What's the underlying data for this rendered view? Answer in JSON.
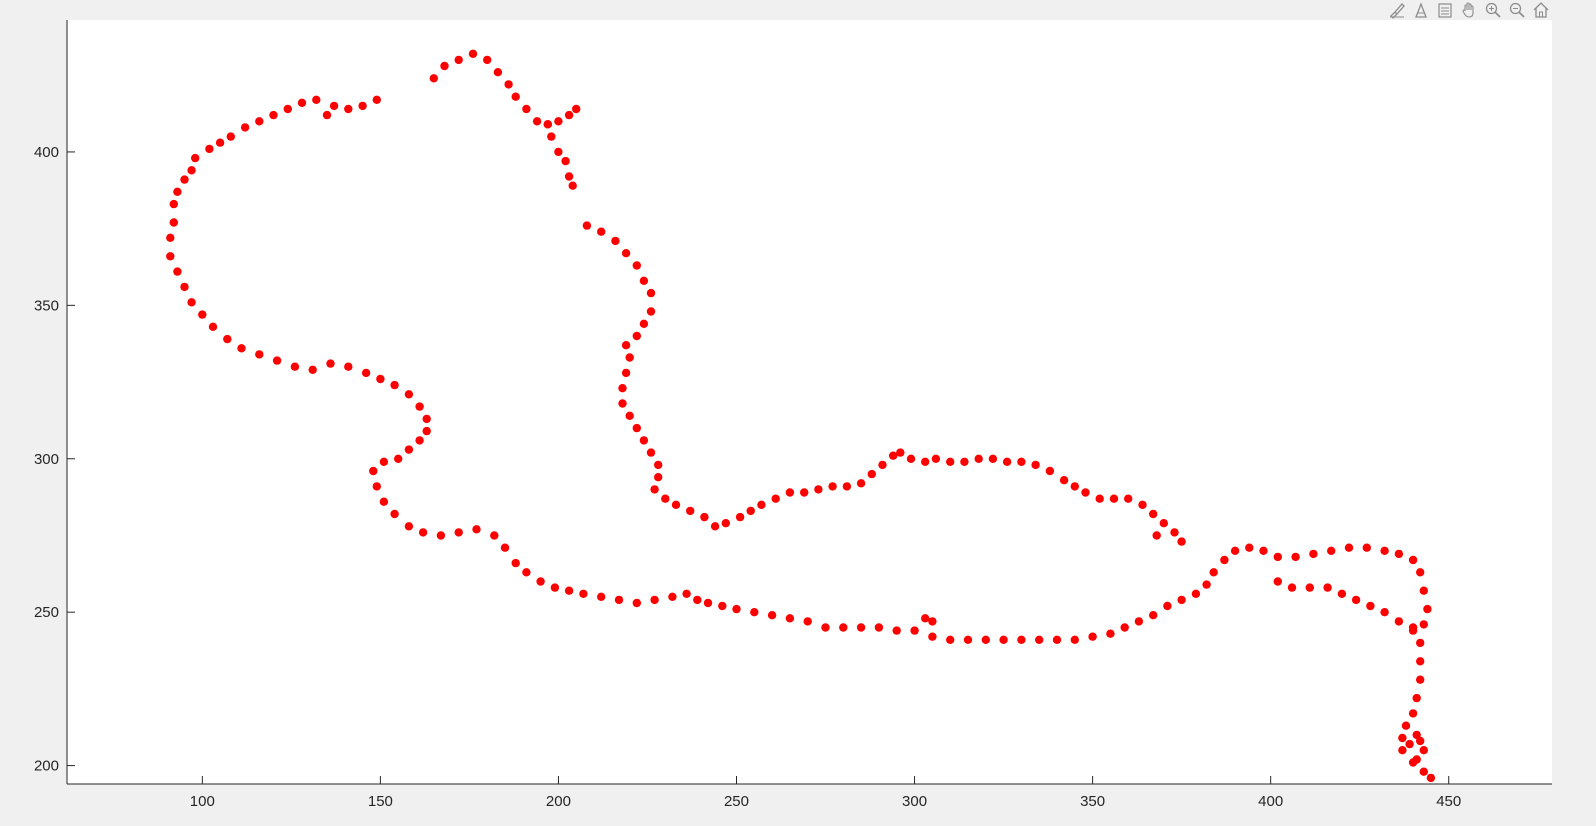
{
  "toolbar": {
    "icons": [
      "brush-icon",
      "data-tips-icon",
      "legend-icon",
      "pan-icon",
      "zoom-in-icon",
      "zoom-out-icon",
      "home-icon"
    ]
  },
  "colors": {
    "background": "#f0f0f0",
    "axes_background": "#ffffff",
    "marker": "#ff0000",
    "axis": "#262626",
    "icon": "#8c8c8c"
  },
  "chart_data": {
    "type": "scatter",
    "title": "",
    "xlabel": "",
    "ylabel": "",
    "xlim": [
      62,
      479
    ],
    "ylim": [
      194,
      443
    ],
    "xticks": [
      100,
      150,
      200,
      250,
      300,
      350,
      400,
      450
    ],
    "yticks": [
      200,
      250,
      300,
      350,
      400
    ],
    "grid": false,
    "marker": "filled circle",
    "series": [
      {
        "color": "#ff0000",
        "points": [
          [
            165,
            424
          ],
          [
            168,
            428
          ],
          [
            172,
            430
          ],
          [
            176,
            432
          ],
          [
            180,
            430
          ],
          [
            183,
            426
          ],
          [
            186,
            422
          ],
          [
            188,
            418
          ],
          [
            191,
            414
          ],
          [
            194,
            410
          ],
          [
            197,
            409
          ],
          [
            200,
            410
          ],
          [
            203,
            412
          ],
          [
            205,
            414
          ],
          [
            197,
            409
          ],
          [
            198,
            405
          ],
          [
            200,
            400
          ],
          [
            202,
            397
          ],
          [
            203,
            392
          ],
          [
            204,
            389
          ],
          [
            149,
            417
          ],
          [
            145,
            415
          ],
          [
            141,
            414
          ],
          [
            137,
            415
          ],
          [
            135,
            412
          ],
          [
            132,
            417
          ],
          [
            128,
            416
          ],
          [
            124,
            414
          ],
          [
            120,
            412
          ],
          [
            116,
            410
          ],
          [
            112,
            408
          ],
          [
            108,
            405
          ],
          [
            105,
            403
          ],
          [
            102,
            401
          ],
          [
            98,
            398
          ],
          [
            97,
            394
          ],
          [
            95,
            391
          ],
          [
            93,
            387
          ],
          [
            92,
            383
          ],
          [
            92,
            377
          ],
          [
            91,
            372
          ],
          [
            91,
            366
          ],
          [
            93,
            361
          ],
          [
            95,
            356
          ],
          [
            97,
            351
          ],
          [
            100,
            347
          ],
          [
            103,
            343
          ],
          [
            107,
            339
          ],
          [
            111,
            336
          ],
          [
            116,
            334
          ],
          [
            121,
            332
          ],
          [
            126,
            330
          ],
          [
            131,
            329
          ],
          [
            136,
            331
          ],
          [
            141,
            330
          ],
          [
            146,
            328
          ],
          [
            150,
            326
          ],
          [
            154,
            324
          ],
          [
            158,
            321
          ],
          [
            161,
            317
          ],
          [
            163,
            313
          ],
          [
            163,
            309
          ],
          [
            161,
            306
          ],
          [
            158,
            303
          ],
          [
            155,
            300
          ],
          [
            151,
            299
          ],
          [
            148,
            296
          ],
          [
            149,
            291
          ],
          [
            151,
            286
          ],
          [
            154,
            282
          ],
          [
            158,
            278
          ],
          [
            162,
            276
          ],
          [
            167,
            275
          ],
          [
            172,
            276
          ],
          [
            177,
            277
          ],
          [
            182,
            275
          ],
          [
            185,
            271
          ],
          [
            188,
            266
          ],
          [
            191,
            263
          ],
          [
            195,
            260
          ],
          [
            199,
            258
          ],
          [
            203,
            257
          ],
          [
            207,
            256
          ],
          [
            212,
            255
          ],
          [
            217,
            254
          ],
          [
            222,
            253
          ],
          [
            227,
            254
          ],
          [
            232,
            255
          ],
          [
            236,
            256
          ],
          [
            239,
            254
          ],
          [
            242,
            253
          ],
          [
            246,
            252
          ],
          [
            250,
            251
          ],
          [
            255,
            250
          ],
          [
            260,
            249
          ],
          [
            265,
            248
          ],
          [
            270,
            247
          ],
          [
            275,
            245
          ],
          [
            280,
            245
          ],
          [
            285,
            245
          ],
          [
            290,
            245
          ],
          [
            295,
            244
          ],
          [
            300,
            244
          ],
          [
            305,
            242
          ],
          [
            310,
            241
          ],
          [
            315,
            241
          ],
          [
            320,
            241
          ],
          [
            325,
            241
          ],
          [
            330,
            241
          ],
          [
            335,
            241
          ],
          [
            340,
            241
          ],
          [
            345,
            241
          ],
          [
            350,
            242
          ],
          [
            355,
            243
          ],
          [
            359,
            245
          ],
          [
            363,
            247
          ],
          [
            367,
            249
          ],
          [
            371,
            252
          ],
          [
            375,
            254
          ],
          [
            379,
            256
          ],
          [
            382,
            259
          ],
          [
            384,
            263
          ],
          [
            387,
            267
          ],
          [
            390,
            270
          ],
          [
            394,
            271
          ],
          [
            398,
            270
          ],
          [
            402,
            268
          ],
          [
            407,
            268
          ],
          [
            412,
            269
          ],
          [
            417,
            270
          ],
          [
            422,
            271
          ],
          [
            427,
            271
          ],
          [
            432,
            270
          ],
          [
            436,
            269
          ],
          [
            440,
            267
          ],
          [
            442,
            263
          ],
          [
            443,
            257
          ],
          [
            444,
            251
          ],
          [
            443,
            246
          ],
          [
            440,
            244
          ],
          [
            402,
            260
          ],
          [
            406,
            258
          ],
          [
            411,
            258
          ],
          [
            416,
            258
          ],
          [
            420,
            256
          ],
          [
            424,
            254
          ],
          [
            428,
            252
          ],
          [
            432,
            250
          ],
          [
            436,
            247
          ],
          [
            440,
            245
          ],
          [
            442,
            240
          ],
          [
            442,
            234
          ],
          [
            442,
            228
          ],
          [
            441,
            222
          ],
          [
            440,
            217
          ],
          [
            438,
            213
          ],
          [
            437,
            209
          ],
          [
            437,
            205
          ],
          [
            440,
            201
          ],
          [
            443,
            198
          ],
          [
            445,
            196
          ],
          [
            439,
            207
          ],
          [
            441,
            210
          ],
          [
            442,
            208
          ],
          [
            443,
            205
          ],
          [
            441,
            202
          ],
          [
            208,
            376
          ],
          [
            212,
            374
          ],
          [
            216,
            371
          ],
          [
            219,
            367
          ],
          [
            222,
            363
          ],
          [
            224,
            358
          ],
          [
            226,
            354
          ],
          [
            226,
            348
          ],
          [
            224,
            344
          ],
          [
            222,
            340
          ],
          [
            219,
            337
          ],
          [
            220,
            333
          ],
          [
            219,
            328
          ],
          [
            218,
            323
          ],
          [
            218,
            318
          ],
          [
            220,
            314
          ],
          [
            222,
            310
          ],
          [
            224,
            306
          ],
          [
            226,
            302
          ],
          [
            228,
            298
          ],
          [
            228,
            294
          ],
          [
            227,
            290
          ],
          [
            230,
            287
          ],
          [
            233,
            285
          ],
          [
            237,
            283
          ],
          [
            241,
            281
          ],
          [
            244,
            278
          ],
          [
            247,
            279
          ],
          [
            251,
            281
          ],
          [
            254,
            283
          ],
          [
            257,
            285
          ],
          [
            261,
            287
          ],
          [
            265,
            289
          ],
          [
            269,
            289
          ],
          [
            273,
            290
          ],
          [
            277,
            291
          ],
          [
            281,
            291
          ],
          [
            285,
            292
          ],
          [
            288,
            295
          ],
          [
            291,
            298
          ],
          [
            294,
            301
          ],
          [
            296,
            302
          ],
          [
            299,
            300
          ],
          [
            303,
            299
          ],
          [
            306,
            300
          ],
          [
            310,
            299
          ],
          [
            314,
            299
          ],
          [
            318,
            300
          ],
          [
            322,
            300
          ],
          [
            326,
            299
          ],
          [
            330,
            299
          ],
          [
            334,
            298
          ],
          [
            338,
            296
          ],
          [
            342,
            293
          ],
          [
            345,
            291
          ],
          [
            348,
            289
          ],
          [
            352,
            287
          ],
          [
            356,
            287
          ],
          [
            360,
            287
          ],
          [
            364,
            285
          ],
          [
            367,
            282
          ],
          [
            370,
            279
          ],
          [
            373,
            276
          ],
          [
            375,
            273
          ],
          [
            368,
            275
          ],
          [
            303,
            248
          ],
          [
            305,
            247
          ]
        ]
      }
    ]
  }
}
